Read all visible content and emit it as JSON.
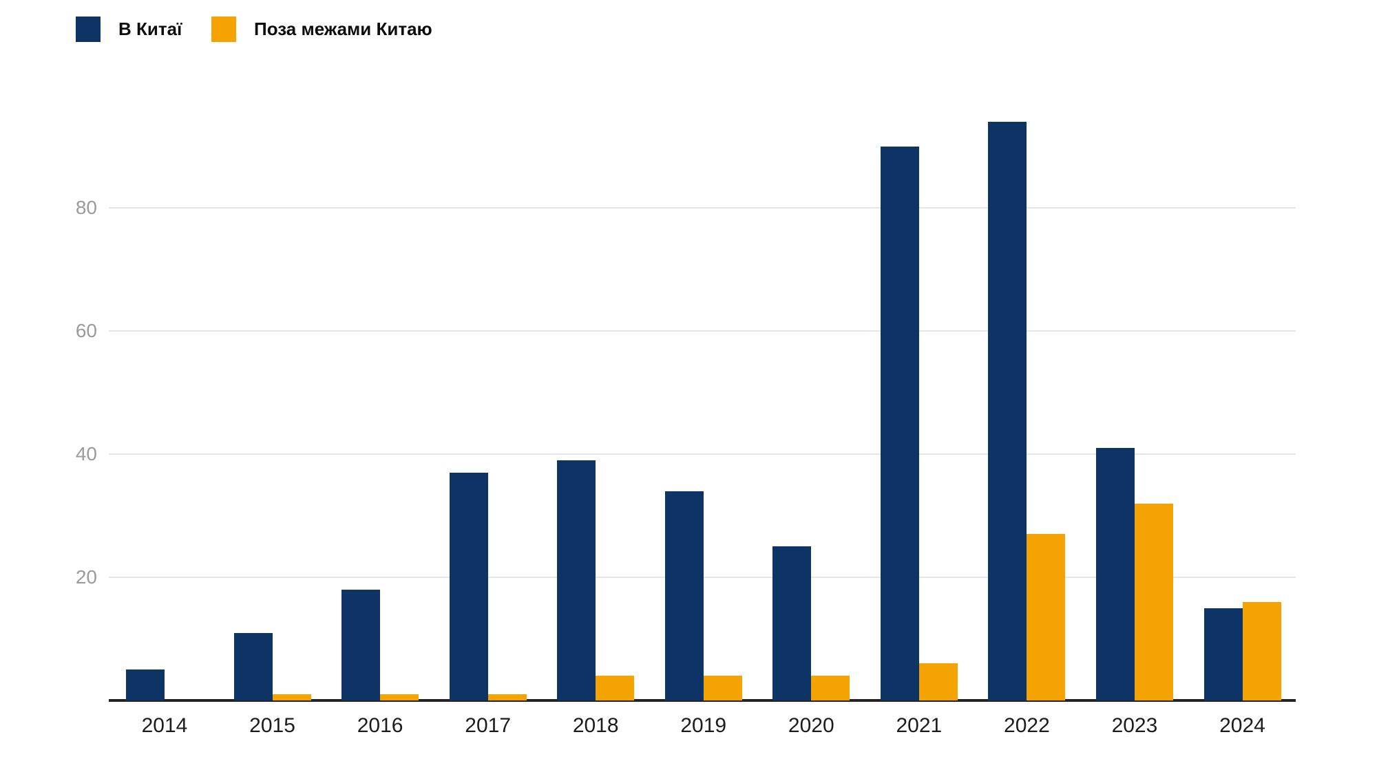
{
  "legend": {
    "items": [
      {
        "label": "В Китаї",
        "color": "#0d3464"
      },
      {
        "label": "Поза межами Китаю",
        "color": "#f5a300"
      }
    ]
  },
  "chart_data": {
    "type": "bar",
    "title": "",
    "xlabel": "",
    "ylabel": "",
    "categories": [
      "2014",
      "2015",
      "2016",
      "2017",
      "2018",
      "2019",
      "2020",
      "2021",
      "2022",
      "2023",
      "2024"
    ],
    "series": [
      {
        "name": "В Китаї",
        "color": "#0d3464",
        "values": [
          5,
          11,
          18,
          37,
          39,
          34,
          25,
          90,
          94,
          41,
          15
        ]
      },
      {
        "name": "Поза межами Китаю",
        "color": "#f5a300",
        "values": [
          0,
          1,
          1,
          1,
          4,
          4,
          4,
          6,
          27,
          32,
          16
        ]
      }
    ],
    "yticks": [
      20,
      40,
      60,
      80
    ],
    "ylim": [
      0,
      100
    ],
    "grid": true,
    "legend_position": "top-left",
    "axis_color": "#232323",
    "gridline_color": "#e6e6e6",
    "ytick_color": "#9a9a9a",
    "xtick_color": "#1c1c1c"
  }
}
